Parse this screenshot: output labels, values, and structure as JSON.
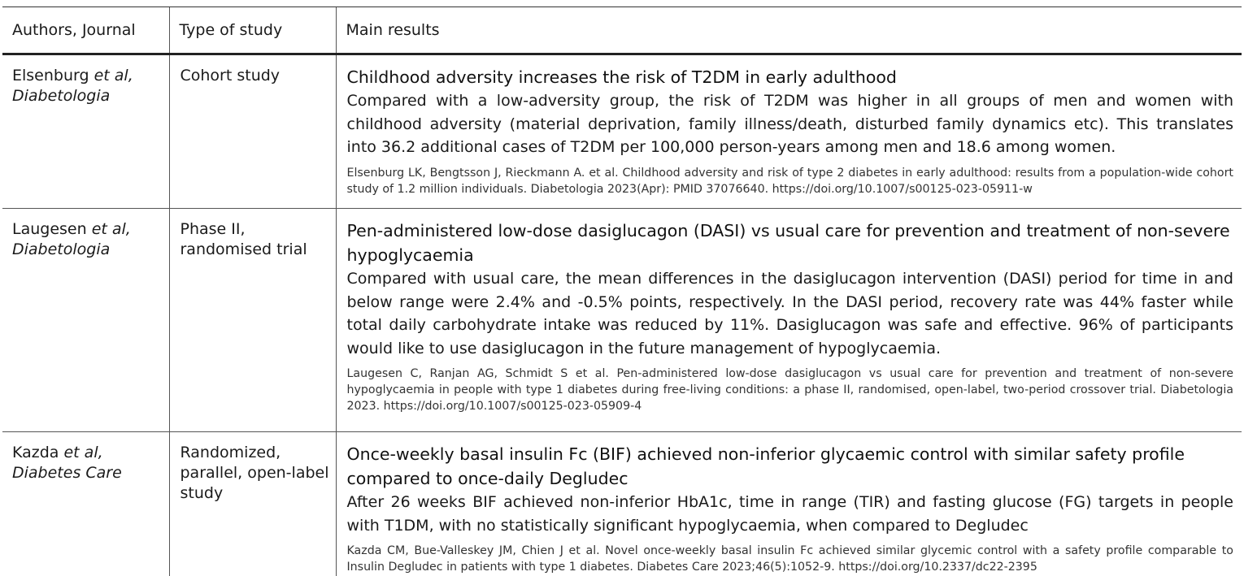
{
  "headers": {
    "authors": "Authors, Journal",
    "type": "Type of study",
    "results": "Main results"
  },
  "rows": [
    {
      "authors": "Elsenburg et al,",
      "author_name": "Elsenburg",
      "author_suffix": " et al,",
      "journal": "Diabetologia",
      "type": "Cohort study",
      "headline": "Childhood adversity increases the risk of T2DM in early adulthood",
      "summary": "Compared with a low-adversity group, the risk of T2DM was higher in all groups of men and women with childhood adversity (material deprivation, family illness/death, disturbed family dynamics etc). This translates into 36.2 additional cases of T2DM per 100,000 person-years among men and 18.6 among women.",
      "reference": "Elsenburg LK, Bengtsson J, Rieckmann A. et al. Childhood adversity and risk of type 2 diabetes in early adulthood: results from a population-wide cohort study of 1.2 million individuals. Diabetologia 2023(Apr): PMID 37076640. https://doi.org/10.1007/s00125-023-05911-w"
    },
    {
      "authors": "Laugesen et al,",
      "author_name": "Laugesen",
      "author_suffix": " et al,",
      "journal": "Diabetologia",
      "type": "Phase II, randomised trial",
      "type_line1": "Phase II,",
      "type_line2": "randomised trial",
      "headline": "Pen-administered low-dose dasiglucagon (DASI) vs usual care for prevention and treatment of non-severe hypoglycaemia",
      "summary": "Compared with usual care, the mean differences in the dasiglucagon intervention (DASI) period for time in and below range were 2.4% and -0.5% points, respectively. In the DASI period, recovery rate was 44% faster while total daily carbohydrate intake was reduced by 11%. Dasiglucagon was safe and effective. 96% of participants would like to use dasiglucagon in the future management of hypoglycaemia.",
      "reference": "Laugesen C, Ranjan AG, Schmidt S et al. Pen-administered low-dose dasiglucagon vs usual care for prevention and treatment of non-severe hypoglycaemia in people with type 1 diabetes during free-living conditions: a phase II, randomised, open-label, two-period crossover trial. Diabetologia 2023. https://doi.org/10.1007/s00125-023-05909-4"
    },
    {
      "authors": "Kazda et al,",
      "author_name": "Kazda",
      "author_suffix": " et al,",
      "journal": "Diabetes Care",
      "type": "Randomized, parallel, open-label study",
      "type_line1": "Randomized,",
      "type_line2": "parallel, open-label",
      "type_line3": "study",
      "headline": "Once-weekly basal insulin Fc (BIF) achieved non-inferior glycaemic control with similar safety profile compared to once-daily Degludec",
      "summary": "After 26 weeks BIF achieved non-inferior HbA1c, time in range (TIR) and fasting glucose (FG) targets in people with T1DM, with no statistically significant hypoglycaemia, when compared to Degludec",
      "reference": "Kazda CM, Bue-Valleskey JM, Chien J et al. Novel once-weekly basal insulin Fc achieved similar glycemic control with a safety profile comparable to Insulin Degludec in patients with type 1 diabetes. Diabetes Care 2023;46(5):1052-9. https://doi.org/10.2337/dc22-2395"
    }
  ]
}
